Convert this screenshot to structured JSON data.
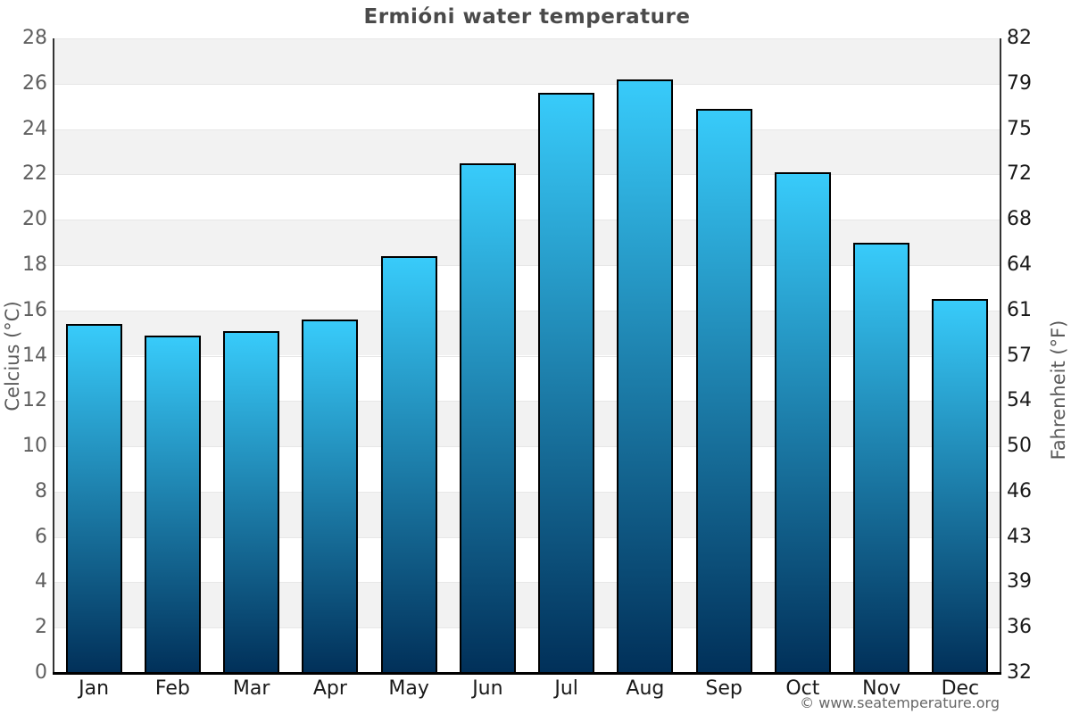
{
  "chart_data": {
    "type": "bar",
    "title": "Ermióni water temperature",
    "categories": [
      "Jan",
      "Feb",
      "Mar",
      "Apr",
      "May",
      "Jun",
      "Jul",
      "Aug",
      "Sep",
      "Oct",
      "Nov",
      "Dec"
    ],
    "values": [
      15.4,
      14.9,
      15.1,
      15.6,
      18.4,
      22.5,
      25.6,
      26.2,
      24.9,
      22.1,
      19.0,
      16.5
    ],
    "ylabel_left": "Celcius (°C)",
    "ylabel_right": "Fahrenheit (°F)",
    "ylim": [
      0,
      28
    ],
    "yticks_celsius": [
      0,
      2,
      4,
      6,
      8,
      10,
      12,
      14,
      16,
      18,
      20,
      22,
      24,
      26,
      28
    ],
    "yticks_fahrenheit": [
      32,
      36,
      39,
      43,
      46,
      50,
      54,
      57,
      61,
      64,
      68,
      72,
      75,
      79,
      82
    ],
    "grid": "alternating horizontal bands every 2°C, gray band at top (26-28)",
    "legend": "none",
    "colors": {
      "bar_gradient_top": "#38cbfa",
      "bar_gradient_bottom": "#013059",
      "bar_border": "#000000",
      "band_gray": "#f2f2f2",
      "band_white": "#ffffff",
      "gridline": "#e7e7e7",
      "axis_line_side": "#333333",
      "axis_line_bottom": "#000000",
      "title_color": "#4a4a4a",
      "tick_left_color": "#5f5f5f",
      "tick_right_color": "#1a1a1a",
      "month_color": "#1a1a1a",
      "axis_title_color": "#5a5a5a",
      "footer_color": "#666666"
    }
  },
  "footer": {
    "copyright": "© www.seatemperature.org"
  }
}
